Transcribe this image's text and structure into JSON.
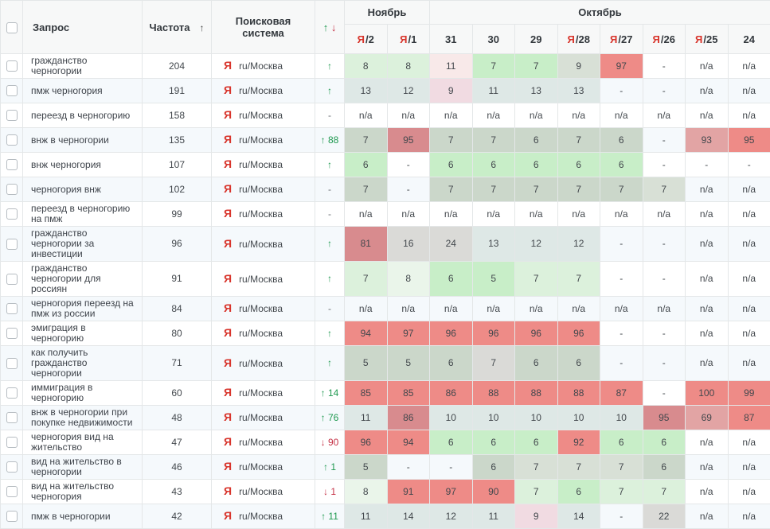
{
  "palette": {
    "gB": "#c8eec8",
    "gP": "#dcf1dc",
    "gF": "#eaf5ea",
    "gG": "#cbd7ca",
    "gGP": "#d8e0d6",
    "bG": "#dee8e6",
    "pF": "#f8e9e9",
    "pK": "#f1dbe2",
    "rS": "#ee8b87",
    "rD": "#d88b8e",
    "rL": "#e2a4a4",
    "gy": "#dadad7",
    "up_color": "#1f9950",
    "down_color": "#c53246",
    "yandex_red": "#d8352c",
    "row_stripe": "#f5f9fc",
    "header_bg": "#f7f8f8"
  },
  "header": {
    "query": "Запрос",
    "frequency": "Частота",
    "freq_sort": "↑",
    "search_engine": "Поисковая система",
    "up_arrow": "↑",
    "down_arrow": "↓",
    "months": [
      {
        "label": "Ноябрь",
        "span": 2
      },
      {
        "label": "Октябрь",
        "span": 8
      }
    ],
    "dates": [
      {
        "prefix": "Я",
        "label": "/2"
      },
      {
        "prefix": "Я",
        "label": "/1"
      },
      {
        "prefix": "",
        "label": "31"
      },
      {
        "prefix": "",
        "label": "30"
      },
      {
        "prefix": "",
        "label": "29"
      },
      {
        "prefix": "Я",
        "label": "/28"
      },
      {
        "prefix": "Я",
        "label": "/27"
      },
      {
        "prefix": "Я",
        "label": "/26"
      },
      {
        "prefix": "Я",
        "label": "/25"
      },
      {
        "prefix": "",
        "label": "24"
      }
    ]
  },
  "engine": {
    "icon": "Я",
    "region": "ru/Москва"
  },
  "rows": [
    {
      "query": "гражданство черногории",
      "freq": "204",
      "change": {
        "arrow": "↑",
        "val": "",
        "dir": "up"
      },
      "cells": [
        [
          "8",
          "gP"
        ],
        [
          "8",
          "gP"
        ],
        [
          "11",
          "pF"
        ],
        [
          "7",
          "gB"
        ],
        [
          "7",
          "gB"
        ],
        [
          "9",
          "gGP"
        ],
        [
          "97",
          "rS"
        ],
        [
          "-",
          ""
        ],
        [
          "n/a",
          ""
        ],
        [
          "n/a",
          ""
        ]
      ]
    },
    {
      "query": "пмж черногория",
      "freq": "191",
      "change": {
        "arrow": "↑",
        "val": "",
        "dir": "up"
      },
      "cells": [
        [
          "13",
          "bG"
        ],
        [
          "12",
          "bG"
        ],
        [
          "9",
          "pK"
        ],
        [
          "11",
          "bG"
        ],
        [
          "13",
          "bG"
        ],
        [
          "13",
          "bG"
        ],
        [
          "-",
          ""
        ],
        [
          "-",
          ""
        ],
        [
          "n/a",
          ""
        ],
        [
          "n/a",
          ""
        ]
      ]
    },
    {
      "query": "переезд в черногорию",
      "freq": "158",
      "change": {
        "arrow": "-",
        "val": "",
        "dir": "none"
      },
      "cells": [
        [
          "n/a",
          ""
        ],
        [
          "n/a",
          ""
        ],
        [
          "n/a",
          ""
        ],
        [
          "n/a",
          ""
        ],
        [
          "n/a",
          ""
        ],
        [
          "n/a",
          ""
        ],
        [
          "n/a",
          ""
        ],
        [
          "n/a",
          ""
        ],
        [
          "n/a",
          ""
        ],
        [
          "n/a",
          ""
        ]
      ]
    },
    {
      "query": "внж в черногории",
      "freq": "135",
      "change": {
        "arrow": "↑",
        "val": "88",
        "dir": "up"
      },
      "cells": [
        [
          "7",
          "gG"
        ],
        [
          "95",
          "rD"
        ],
        [
          "7",
          "gG"
        ],
        [
          "7",
          "gG"
        ],
        [
          "6",
          "gG"
        ],
        [
          "7",
          "gG"
        ],
        [
          "6",
          "gG"
        ],
        [
          "-",
          ""
        ],
        [
          "93",
          "rL"
        ],
        [
          "95",
          "rS"
        ]
      ]
    },
    {
      "query": "внж черногория",
      "freq": "107",
      "change": {
        "arrow": "↑",
        "val": "",
        "dir": "up"
      },
      "cells": [
        [
          "6",
          "gB"
        ],
        [
          "-",
          ""
        ],
        [
          "6",
          "gB"
        ],
        [
          "6",
          "gB"
        ],
        [
          "6",
          "gB"
        ],
        [
          "6",
          "gB"
        ],
        [
          "6",
          "gB"
        ],
        [
          "-",
          ""
        ],
        [
          "-",
          ""
        ],
        [
          "-",
          ""
        ]
      ]
    },
    {
      "query": "черногория внж",
      "freq": "102",
      "change": {
        "arrow": "-",
        "val": "",
        "dir": "none"
      },
      "cells": [
        [
          "7",
          "gG"
        ],
        [
          "-",
          ""
        ],
        [
          "7",
          "gG"
        ],
        [
          "7",
          "gG"
        ],
        [
          "7",
          "gG"
        ],
        [
          "7",
          "gG"
        ],
        [
          "7",
          "gG"
        ],
        [
          "7",
          "gGP"
        ],
        [
          "n/a",
          ""
        ],
        [
          "n/a",
          ""
        ]
      ]
    },
    {
      "query": "переезд в черногорию на пмж",
      "freq": "99",
      "change": {
        "arrow": "-",
        "val": "",
        "dir": "none"
      },
      "cells": [
        [
          "n/a",
          ""
        ],
        [
          "n/a",
          ""
        ],
        [
          "n/a",
          ""
        ],
        [
          "n/a",
          ""
        ],
        [
          "n/a",
          ""
        ],
        [
          "n/a",
          ""
        ],
        [
          "n/a",
          ""
        ],
        [
          "n/a",
          ""
        ],
        [
          "n/a",
          ""
        ],
        [
          "n/a",
          ""
        ]
      ]
    },
    {
      "query": "гражданство черногории за инвестиции",
      "freq": "96",
      "change": {
        "arrow": "↑",
        "val": "",
        "dir": "up"
      },
      "cells": [
        [
          "81",
          "rD"
        ],
        [
          "16",
          "gy"
        ],
        [
          "24",
          "gy"
        ],
        [
          "13",
          "bG"
        ],
        [
          "12",
          "bG"
        ],
        [
          "12",
          "bG"
        ],
        [
          "-",
          ""
        ],
        [
          "-",
          ""
        ],
        [
          "n/a",
          ""
        ],
        [
          "n/a",
          ""
        ]
      ]
    },
    {
      "query": "гражданство черногории для россиян",
      "freq": "91",
      "change": {
        "arrow": "↑",
        "val": "",
        "dir": "up"
      },
      "cells": [
        [
          "7",
          "gP"
        ],
        [
          "8",
          "gF"
        ],
        [
          "6",
          "gB"
        ],
        [
          "5",
          "gB"
        ],
        [
          "7",
          "gP"
        ],
        [
          "7",
          "gP"
        ],
        [
          "-",
          ""
        ],
        [
          "-",
          ""
        ],
        [
          "n/a",
          ""
        ],
        [
          "n/a",
          ""
        ]
      ]
    },
    {
      "query": "черногория переезд на пмж из россии",
      "freq": "84",
      "change": {
        "arrow": "-",
        "val": "",
        "dir": "none"
      },
      "cells": [
        [
          "n/a",
          ""
        ],
        [
          "n/a",
          ""
        ],
        [
          "n/a",
          ""
        ],
        [
          "n/a",
          ""
        ],
        [
          "n/a",
          ""
        ],
        [
          "n/a",
          ""
        ],
        [
          "n/a",
          ""
        ],
        [
          "n/a",
          ""
        ],
        [
          "n/a",
          ""
        ],
        [
          "n/a",
          ""
        ]
      ]
    },
    {
      "query": "эмиграция в черногорию",
      "freq": "80",
      "change": {
        "arrow": "↑",
        "val": "",
        "dir": "up"
      },
      "cells": [
        [
          "94",
          "rS"
        ],
        [
          "97",
          "rS"
        ],
        [
          "96",
          "rS"
        ],
        [
          "96",
          "rS"
        ],
        [
          "96",
          "rS"
        ],
        [
          "96",
          "rS"
        ],
        [
          "-",
          ""
        ],
        [
          "-",
          ""
        ],
        [
          "n/a",
          ""
        ],
        [
          "n/a",
          ""
        ]
      ]
    },
    {
      "query": "как получить гражданство черногории",
      "freq": "71",
      "change": {
        "arrow": "↑",
        "val": "",
        "dir": "up"
      },
      "cells": [
        [
          "5",
          "gG"
        ],
        [
          "5",
          "gG"
        ],
        [
          "6",
          "gG"
        ],
        [
          "7",
          "gy"
        ],
        [
          "6",
          "gG"
        ],
        [
          "6",
          "gG"
        ],
        [
          "-",
          ""
        ],
        [
          "-",
          ""
        ],
        [
          "n/a",
          ""
        ],
        [
          "n/a",
          ""
        ]
      ]
    },
    {
      "query": "иммиграция в черногорию",
      "freq": "60",
      "change": {
        "arrow": "↑",
        "val": "14",
        "dir": "up"
      },
      "cells": [
        [
          "85",
          "rS"
        ],
        [
          "85",
          "rS"
        ],
        [
          "86",
          "rS"
        ],
        [
          "88",
          "rS"
        ],
        [
          "88",
          "rS"
        ],
        [
          "88",
          "rS"
        ],
        [
          "87",
          "rS"
        ],
        [
          "-",
          ""
        ],
        [
          "100",
          "rS"
        ],
        [
          "99",
          "rS"
        ]
      ]
    },
    {
      "query": "внж в черногории при покупке недвижимости",
      "freq": "48",
      "change": {
        "arrow": "↑",
        "val": "76",
        "dir": "up"
      },
      "cells": [
        [
          "11",
          "bG"
        ],
        [
          "86",
          "rD"
        ],
        [
          "10",
          "bG"
        ],
        [
          "10",
          "bG"
        ],
        [
          "10",
          "bG"
        ],
        [
          "10",
          "bG"
        ],
        [
          "10",
          "bG"
        ],
        [
          "95",
          "rD"
        ],
        [
          "69",
          "rL"
        ],
        [
          "87",
          "rS"
        ]
      ]
    },
    {
      "query": "черногория вид на жительство",
      "freq": "47",
      "change": {
        "arrow": "↓",
        "val": "90",
        "dir": "down"
      },
      "cells": [
        [
          "96",
          "rS"
        ],
        [
          "94",
          "rS"
        ],
        [
          "6",
          "gB"
        ],
        [
          "6",
          "gB"
        ],
        [
          "6",
          "gB"
        ],
        [
          "92",
          "rS"
        ],
        [
          "6",
          "gB"
        ],
        [
          "6",
          "gB"
        ],
        [
          "n/a",
          ""
        ],
        [
          "n/a",
          ""
        ]
      ]
    },
    {
      "query": "вид на жительство в черногории",
      "freq": "46",
      "change": {
        "arrow": "↑",
        "val": "1",
        "dir": "up"
      },
      "cells": [
        [
          "5",
          "gG"
        ],
        [
          "-",
          ""
        ],
        [
          "-",
          ""
        ],
        [
          "6",
          "gG"
        ],
        [
          "7",
          "gGP"
        ],
        [
          "7",
          "gGP"
        ],
        [
          "7",
          "gGP"
        ],
        [
          "6",
          "gG"
        ],
        [
          "n/a",
          ""
        ],
        [
          "n/a",
          ""
        ]
      ]
    },
    {
      "query": "вид на жительство черногория",
      "freq": "43",
      "change": {
        "arrow": "↓",
        "val": "1",
        "dir": "down"
      },
      "cells": [
        [
          "8",
          "gF"
        ],
        [
          "91",
          "rS"
        ],
        [
          "97",
          "rS"
        ],
        [
          "90",
          "rS"
        ],
        [
          "7",
          "gP"
        ],
        [
          "6",
          "gB"
        ],
        [
          "7",
          "gP"
        ],
        [
          "7",
          "gP"
        ],
        [
          "n/a",
          ""
        ],
        [
          "n/a",
          ""
        ]
      ]
    },
    {
      "query": "пмж в черногории",
      "freq": "42",
      "change": {
        "arrow": "↑",
        "val": "11",
        "dir": "up"
      },
      "cells": [
        [
          "11",
          "bG"
        ],
        [
          "14",
          "bG"
        ],
        [
          "12",
          "bG"
        ],
        [
          "11",
          "bG"
        ],
        [
          "9",
          "pK"
        ],
        [
          "14",
          "bG"
        ],
        [
          "-",
          ""
        ],
        [
          "22",
          "gy"
        ],
        [
          "n/a",
          ""
        ],
        [
          "n/a",
          ""
        ]
      ]
    }
  ]
}
